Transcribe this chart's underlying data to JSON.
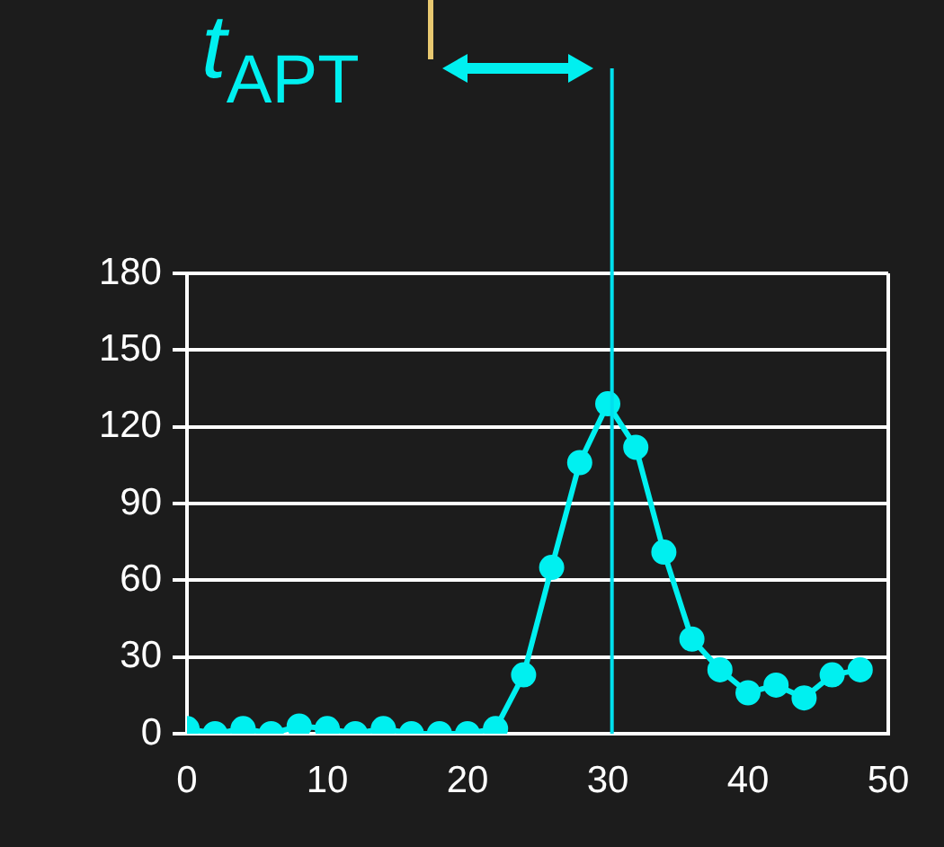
{
  "chart_data": {
    "type": "line",
    "x": [
      0,
      2,
      4,
      6,
      8,
      10,
      12,
      14,
      16,
      18,
      20,
      22,
      24,
      26,
      28,
      30,
      32,
      34,
      36,
      38,
      40,
      42,
      44,
      46,
      48
    ],
    "values": [
      2,
      0,
      2,
      0,
      3,
      2,
      0,
      2,
      0,
      0,
      0,
      2,
      23,
      65,
      106,
      129,
      112,
      71,
      37,
      25,
      16,
      19,
      14,
      23,
      25
    ],
    "color": "#00f0f0",
    "marker": "circle",
    "grid": "y",
    "legend": false,
    "xlim": [
      0,
      50
    ],
    "xticks": [
      0,
      10,
      20,
      30,
      40,
      50
    ],
    "ylim": [
      0,
      180
    ],
    "yticks": [
      0,
      30,
      60,
      90,
      120,
      150,
      180
    ],
    "ref_lines": [
      {
        "axis": "x",
        "value": 30.3,
        "color": "#00e0ee"
      }
    ],
    "annotations": [
      "t$_{APT}$"
    ]
  }
}
